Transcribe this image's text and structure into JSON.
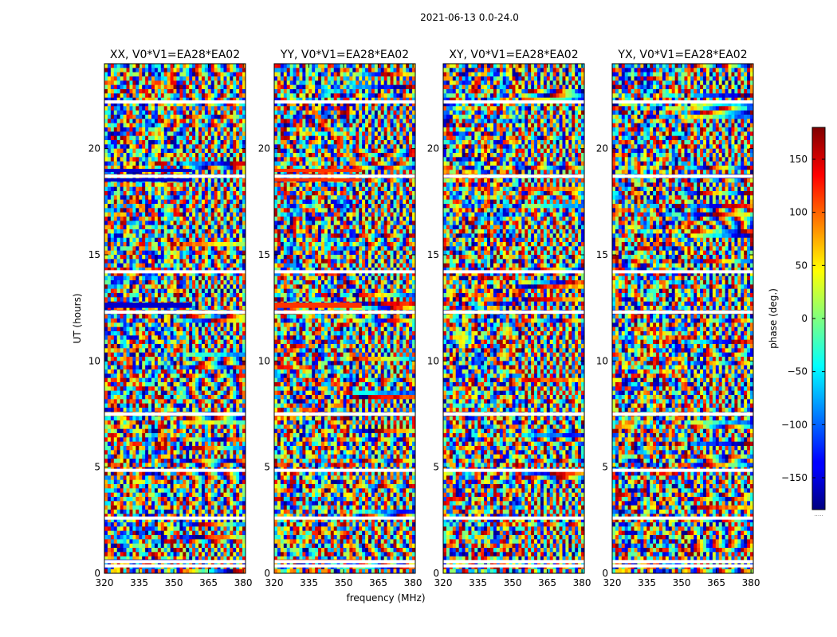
{
  "figure": {
    "suptitle": "2021-06-13 0.0-24.0"
  },
  "chart_data": {
    "type": "heatmap",
    "colormap": "jet",
    "x_label": "frequency (MHz)",
    "y_label": "UT (hours)",
    "colorbar_label": "phase (deg.)",
    "colorbar_under_label": ".....",
    "xlim": [
      320,
      381
    ],
    "ylim": [
      0,
      24
    ],
    "clim": [
      -180,
      180
    ],
    "x_ticks": [
      320,
      335,
      350,
      365,
      380
    ],
    "y_ticks": [
      0,
      5,
      10,
      15,
      20
    ],
    "colorbar_ticks": [
      -150,
      -100,
      -50,
      0,
      50,
      100,
      150
    ],
    "panels": [
      {
        "title": "XX, V0*V1=EA28*EA02",
        "band_color": "#0000cc"
      },
      {
        "title": "YY, V0*V1=EA28*EA02",
        "band_color": "#ff3300"
      },
      {
        "title": "XY, V0*V1=EA28*EA02",
        "band_color": null
      },
      {
        "title": "YX, V0*V1=EA28*EA02",
        "band_color": null
      }
    ],
    "flagged_rows_hours": [
      0.35,
      0.55,
      2.6,
      4.85,
      7.5,
      12.3,
      14.2,
      18.7,
      22.2
    ],
    "saturated_bands_hours": [
      [
        12.5,
        12.75
      ],
      [
        18.45,
        18.6
      ],
      [
        18.9,
        19.05
      ],
      [
        0.5,
        0.65
      ]
    ]
  }
}
